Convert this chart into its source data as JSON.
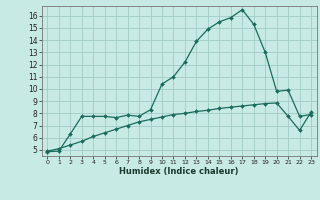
{
  "xlabel": "Humidex (Indice chaleur)",
  "bg_color": "#c8eae4",
  "grid_color": "#a0ccc4",
  "line_color": "#1a6b5e",
  "xlim": [
    -0.5,
    23.5
  ],
  "ylim": [
    4.5,
    16.8
  ],
  "xticks": [
    0,
    1,
    2,
    3,
    4,
    5,
    6,
    7,
    8,
    9,
    10,
    11,
    12,
    13,
    14,
    15,
    16,
    17,
    18,
    19,
    20,
    21,
    22,
    23
  ],
  "yticks": [
    5,
    6,
    7,
    8,
    9,
    10,
    11,
    12,
    13,
    14,
    15,
    16
  ],
  "line1_x": [
    0,
    1,
    2,
    3,
    4,
    5,
    6,
    7,
    8,
    9,
    10,
    11,
    12,
    13,
    14,
    15,
    16,
    17,
    18,
    19,
    20,
    21,
    22,
    23
  ],
  "line1_y": [
    4.85,
    4.9,
    6.3,
    7.75,
    7.75,
    7.75,
    7.65,
    7.85,
    7.75,
    8.3,
    10.4,
    11.0,
    12.2,
    13.9,
    14.9,
    15.5,
    15.85,
    16.5,
    15.3,
    13.0,
    9.8,
    9.9,
    7.75,
    7.9
  ],
  "line2_x": [
    0,
    1,
    2,
    3,
    4,
    5,
    6,
    7,
    8,
    9,
    10,
    11,
    12,
    13,
    14,
    15,
    16,
    17,
    18,
    19,
    20,
    21,
    22,
    23
  ],
  "line2_y": [
    4.9,
    5.1,
    5.4,
    5.7,
    6.1,
    6.4,
    6.7,
    7.0,
    7.3,
    7.5,
    7.7,
    7.9,
    8.0,
    8.15,
    8.25,
    8.4,
    8.5,
    8.6,
    8.7,
    8.8,
    8.85,
    7.75,
    6.6,
    8.1
  ]
}
